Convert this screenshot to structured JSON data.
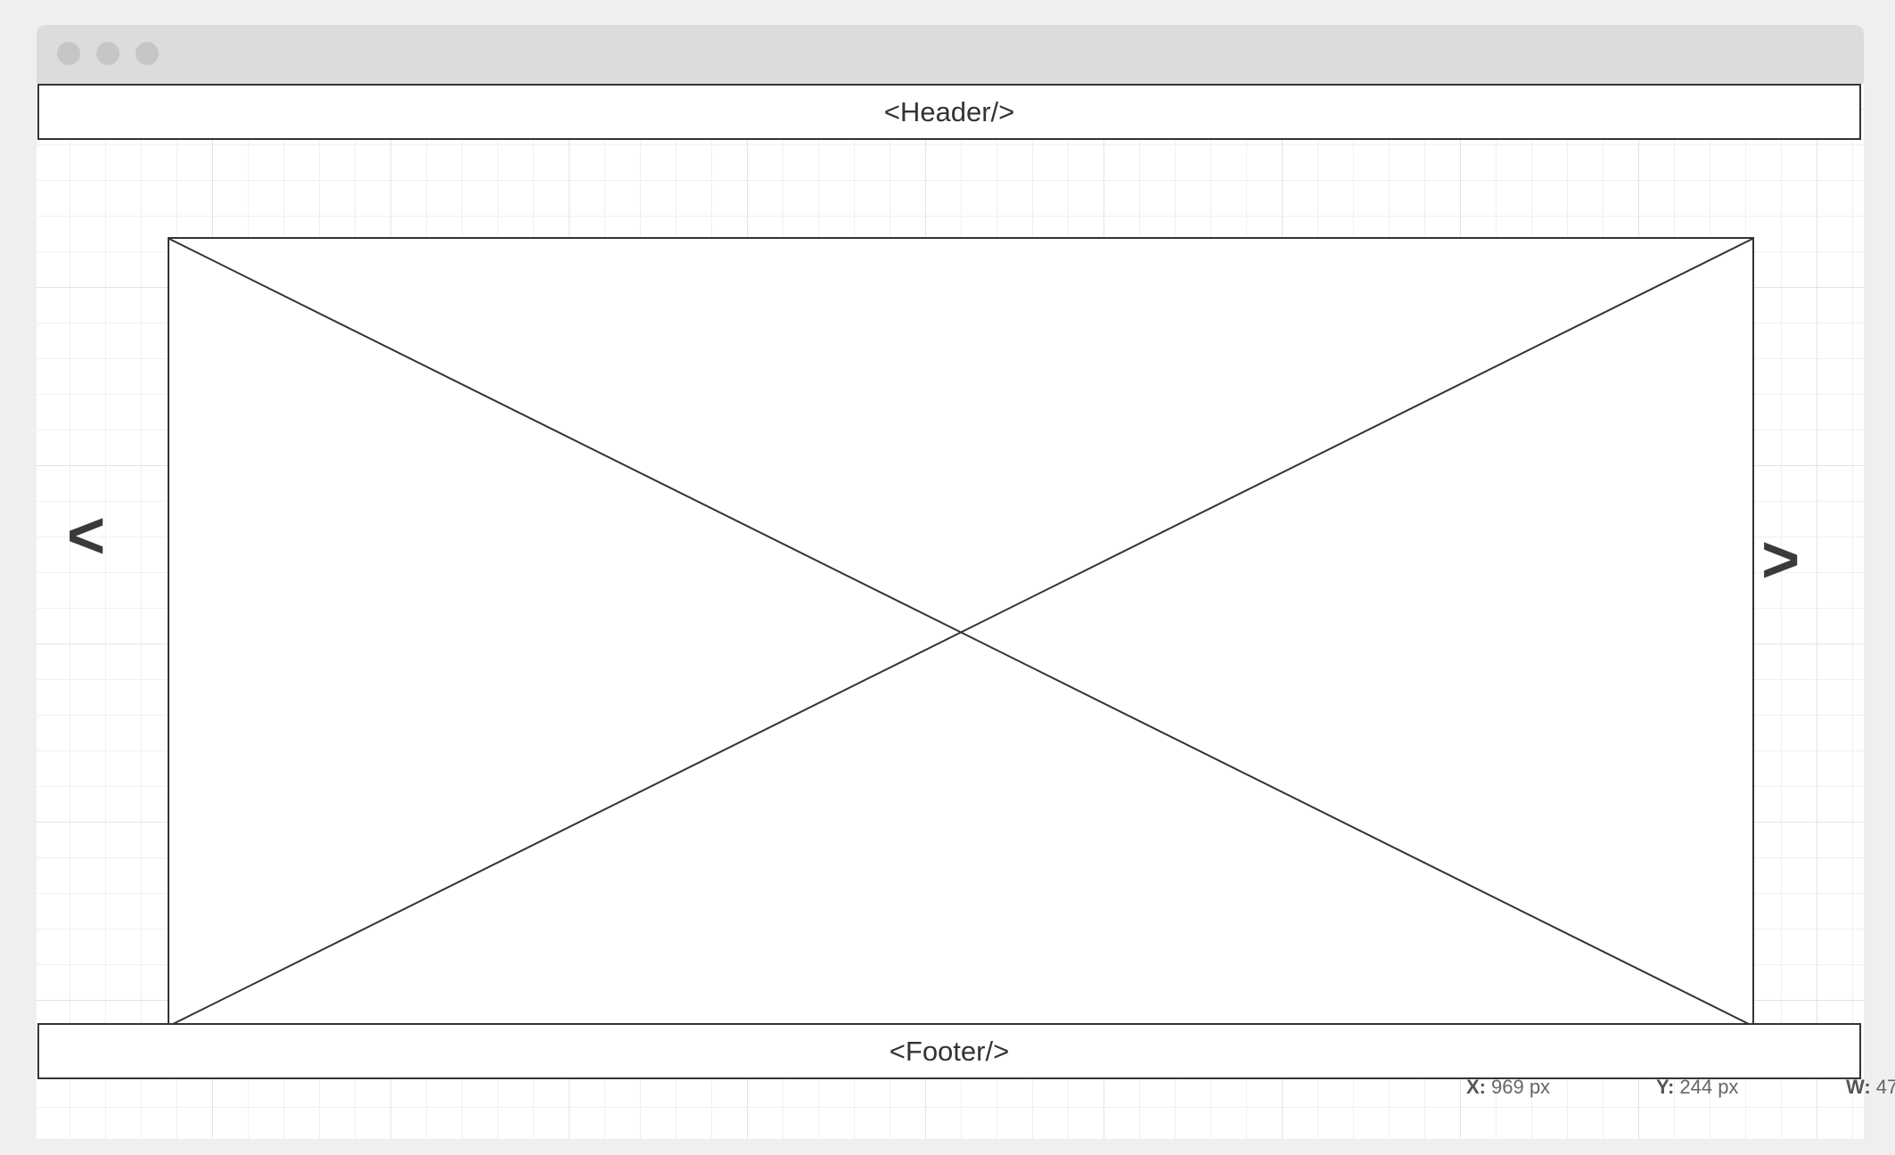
{
  "window": {
    "controls": [
      "close-dot",
      "minimize-dot",
      "maximize-dot"
    ]
  },
  "wireframe": {
    "header_label": "<Header/>",
    "footer_label": "<Footer/>",
    "prev_arrow": "<",
    "next_arrow": ">",
    "image_placeholder_icon": "crossed-box-icon"
  },
  "inspector": {
    "x_label": "X:",
    "x_value": "969 px",
    "y_label": "Y:",
    "y_value": "244 px",
    "w_label": "W:",
    "w_value": "47"
  },
  "colors": {
    "stroke": "#333333",
    "grid_major": "#e3e3e3",
    "grid_minor": "#f0f0f0",
    "titlebar": "#dcdcdc",
    "background": "#efefef"
  }
}
